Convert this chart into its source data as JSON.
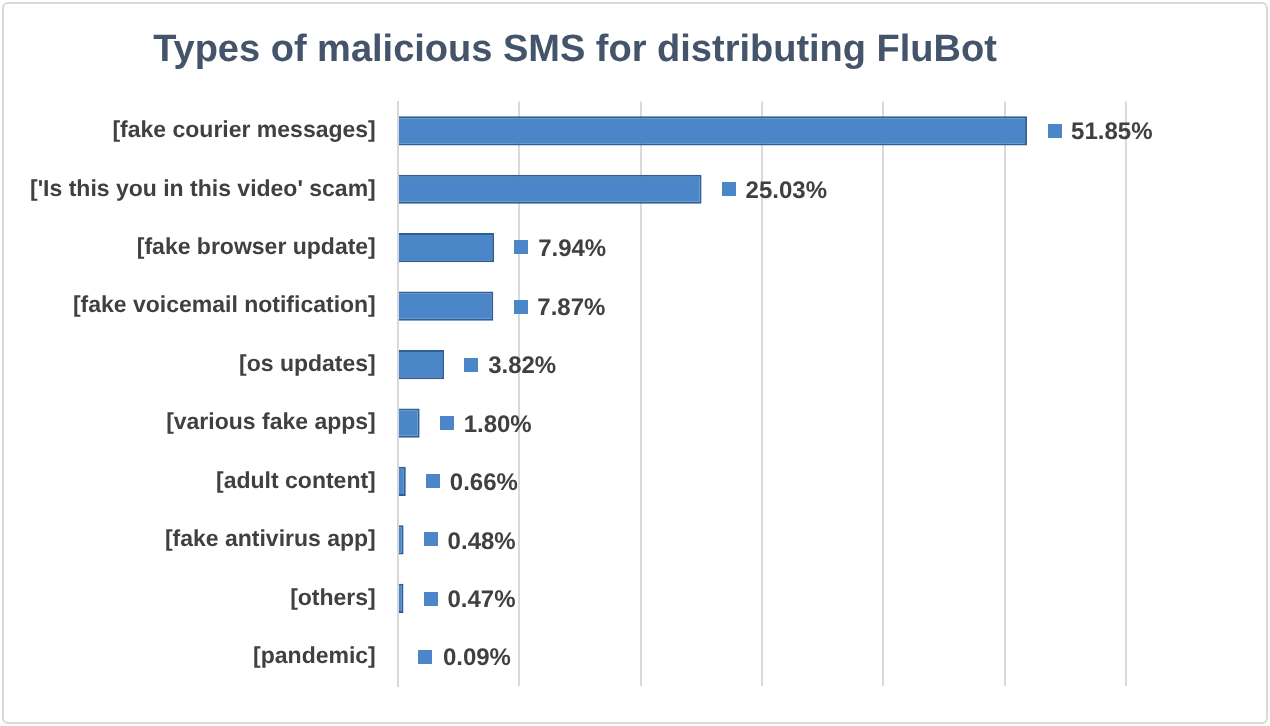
{
  "chart_data": {
    "type": "bar",
    "orientation": "horizontal",
    "title": "Types of malicious SMS for distributing FluBot",
    "categories": [
      "[fake courier messages]",
      "['Is this you in this video' scam]",
      "[fake browser update]",
      "[fake voicemail notification]",
      "[os updates]",
      "[various fake apps]",
      "[adult content]",
      "[fake antivirus app]",
      "[others]",
      "[pandemic]"
    ],
    "values": [
      51.85,
      25.03,
      7.94,
      7.87,
      3.82,
      1.8,
      0.66,
      0.48,
      0.47,
      0.09
    ],
    "value_labels": [
      "51.85%",
      "25.03%",
      "7.94%",
      "7.87%",
      "3.82%",
      "1.80%",
      "0.66%",
      "0.48%",
      "0.47%",
      "0.09%"
    ],
    "color": "#4a86c8",
    "xlim": [
      0,
      60
    ],
    "xticks": [
      {
        "value": 0,
        "label": null
      },
      {
        "value": 10,
        "label": null
      },
      {
        "value": 20,
        "label": null
      },
      {
        "value": 30,
        "label": null
      },
      {
        "value": 40,
        "label": null
      },
      {
        "value": 50,
        "label": null
      },
      {
        "value": 60,
        "label": null
      }
    ],
    "grid": "x",
    "tick_labels": "y",
    "legend": false
  }
}
